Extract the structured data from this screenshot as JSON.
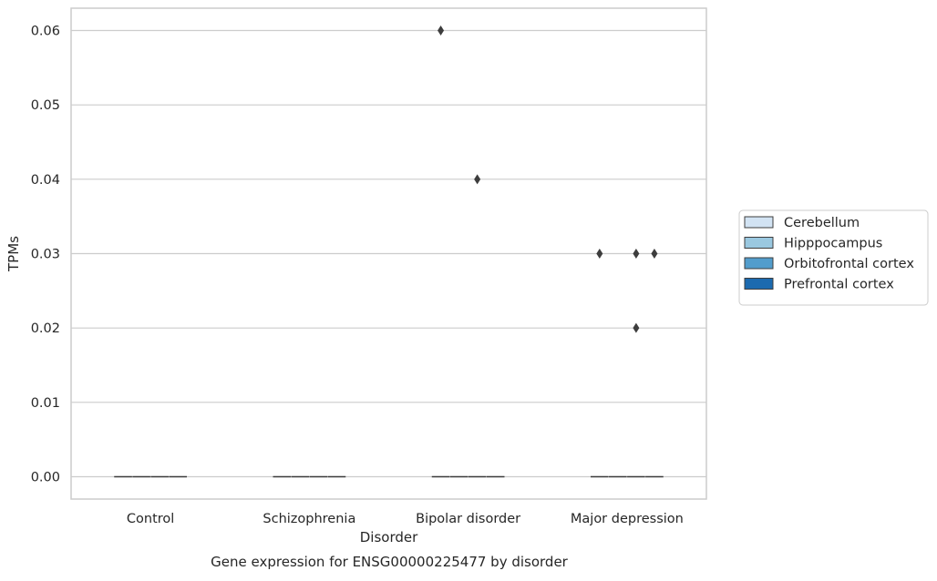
{
  "chart_data": {
    "type": "box",
    "title": "",
    "caption": "Gene expression for ENSG00000225477 by disorder",
    "xlabel": "Disorder",
    "ylabel": "TPMs",
    "categories": [
      "Control",
      "Schizophrenia",
      "Bipolar disorder",
      "Major depression"
    ],
    "yticks": [
      "0.00",
      "0.01",
      "0.02",
      "0.03",
      "0.04",
      "0.05",
      "0.06"
    ],
    "ylim": [
      -0.003,
      0.063
    ],
    "grid": "horizontal",
    "legend_position": "right",
    "series": [
      {
        "name": "Cerebellum",
        "color": "#d2e3f3",
        "boxes": [
          {
            "q1": 0,
            "median": 0,
            "q3": 0,
            "whisker_low": 0,
            "whisker_high": 0,
            "outliers": []
          },
          {
            "q1": 0,
            "median": 0,
            "q3": 0,
            "whisker_low": 0,
            "whisker_high": 0,
            "outliers": []
          },
          {
            "q1": 0,
            "median": 0,
            "q3": 0,
            "whisker_low": 0,
            "whisker_high": 0,
            "outliers": [
              0.06
            ]
          },
          {
            "q1": 0,
            "median": 0,
            "q3": 0,
            "whisker_low": 0,
            "whisker_high": 0,
            "outliers": [
              0.03
            ]
          }
        ]
      },
      {
        "name": "Hipppocampus",
        "color": "#9ac8e0",
        "boxes": [
          {
            "q1": 0,
            "median": 0,
            "q3": 0,
            "whisker_low": 0,
            "whisker_high": 0,
            "outliers": []
          },
          {
            "q1": 0,
            "median": 0,
            "q3": 0,
            "whisker_low": 0,
            "whisker_high": 0,
            "outliers": []
          },
          {
            "q1": 0,
            "median": 0,
            "q3": 0,
            "whisker_low": 0,
            "whisker_high": 0,
            "outliers": []
          },
          {
            "q1": 0,
            "median": 0,
            "q3": 0,
            "whisker_low": 0,
            "whisker_high": 0,
            "outliers": []
          }
        ]
      },
      {
        "name": "Orbitofrontal cortex",
        "color": "#529dcc",
        "boxes": [
          {
            "q1": 0,
            "median": 0,
            "q3": 0,
            "whisker_low": 0,
            "whisker_high": 0,
            "outliers": []
          },
          {
            "q1": 0,
            "median": 0,
            "q3": 0,
            "whisker_low": 0,
            "whisker_high": 0,
            "outliers": []
          },
          {
            "q1": 0,
            "median": 0,
            "q3": 0,
            "whisker_low": 0,
            "whisker_high": 0,
            "outliers": [
              0.04
            ]
          },
          {
            "q1": 0,
            "median": 0,
            "q3": 0,
            "whisker_low": 0,
            "whisker_high": 0,
            "outliers": [
              0.03,
              0.02
            ]
          }
        ]
      },
      {
        "name": "Prefrontal cortex",
        "color": "#1c6aaf",
        "boxes": [
          {
            "q1": 0,
            "median": 0,
            "q3": 0,
            "whisker_low": 0,
            "whisker_high": 0,
            "outliers": []
          },
          {
            "q1": 0,
            "median": 0,
            "q3": 0,
            "whisker_low": 0,
            "whisker_high": 0,
            "outliers": []
          },
          {
            "q1": 0,
            "median": 0,
            "q3": 0,
            "whisker_low": 0,
            "whisker_high": 0,
            "outliers": []
          },
          {
            "q1": 0,
            "median": 0,
            "q3": 0,
            "whisker_low": 0,
            "whisker_high": 0,
            "outliers": [
              0.03
            ]
          }
        ]
      }
    ]
  }
}
